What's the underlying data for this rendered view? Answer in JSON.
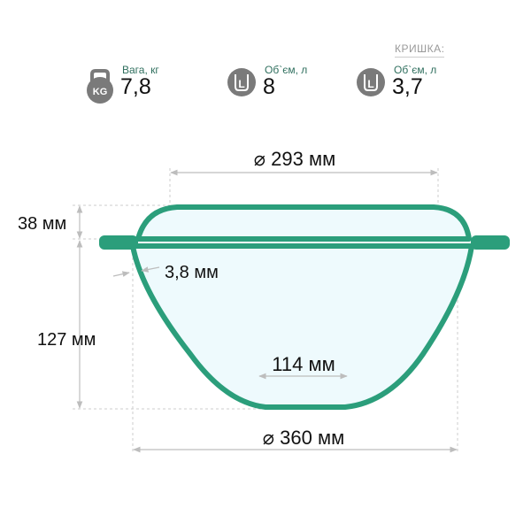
{
  "specs": [
    {
      "icon": "kettlebell-kg-icon",
      "icon_text": "KG",
      "label": "Вага, кг",
      "value": "7,8"
    },
    {
      "icon": "pot-volume-icon",
      "icon_text": "L",
      "label": "Об`єм, л",
      "value": "8"
    },
    {
      "icon": "pot-volume-icon",
      "icon_text": "L",
      "label": "Об`єм, л",
      "value": "3,7"
    }
  ],
  "lid_heading": "КРИШКА:",
  "dimensions": {
    "top_diameter": "⌀ 293 мм",
    "lid_height": "38 мм",
    "wall_thickness": "3,8 мм",
    "body_height": "127 мм",
    "bottom_diameter": "114 мм",
    "outer_diameter": "⌀ 360 мм"
  },
  "colors": {
    "outline": "#2b9e7b",
    "fill": "#eefafd",
    "dim": "#bdbdbd",
    "icon": "#7a7a7a"
  }
}
